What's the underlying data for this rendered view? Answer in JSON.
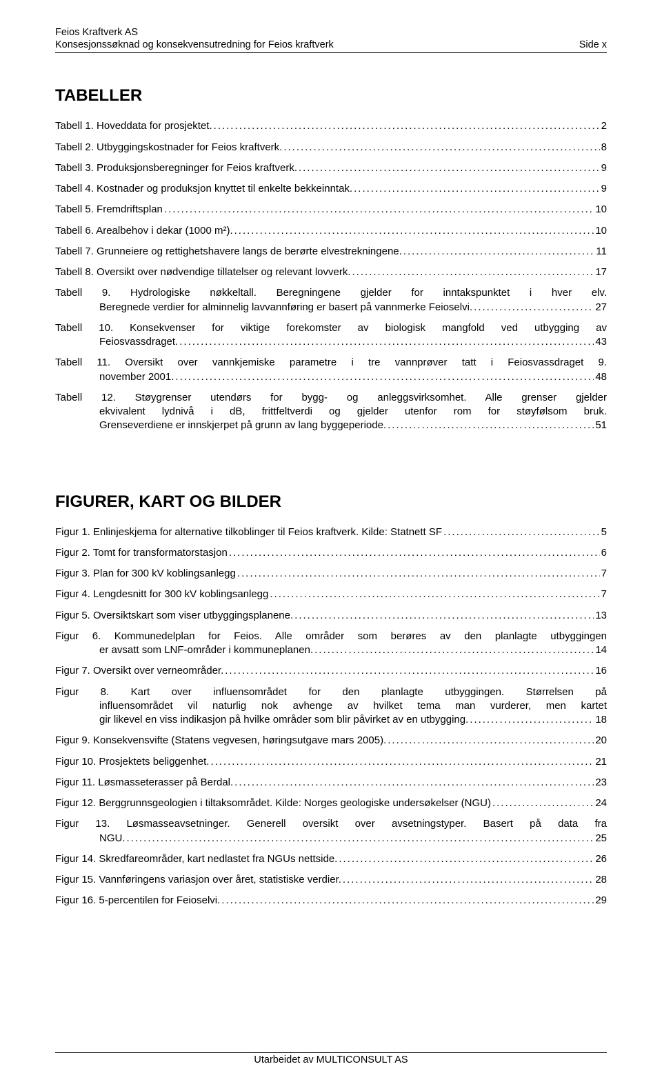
{
  "header": {
    "line1": "Feios Kraftverk AS",
    "line2_left": "Konsesjonssøknad og konsekvensutredning for Feios kraftverk",
    "line2_right": "Side x"
  },
  "sections": [
    {
      "title": "TABELLER",
      "entries": [
        {
          "lead": "Tabell 1.",
          "text": "Hoveddata for prosjektet.",
          "page": "2"
        },
        {
          "lead": "Tabell 2.",
          "text": "Utbyggingskostnader for Feios kraftverk.",
          "page": "8"
        },
        {
          "lead": "Tabell 3.",
          "text": "Produksjonsberegninger for Feios kraftverk.",
          "page": "9"
        },
        {
          "lead": "Tabell 4.",
          "text": "Kostnader og produksjon knyttet til enkelte bekkeinntak.",
          "page": "9"
        },
        {
          "lead": "Tabell 5.",
          "text": "Fremdriftsplan",
          "page": "10"
        },
        {
          "lead": "Tabell 6.",
          "text": "Arealbehov i dekar (1000 m²).",
          "page": "10"
        },
        {
          "lead": "Tabell 7.",
          "text": "Grunneiere og rettighetshavere langs de berørte elvestrekningene.",
          "page": "11"
        },
        {
          "lead": "Tabell 8.",
          "text": "Oversikt over nødvendige tillatelser og relevant lovverk.",
          "page": "17"
        },
        {
          "lead": "Tabell 9.",
          "text_first": "Hydrologiske nøkkeltall. Beregningene gjelder for inntakspunktet i hver elv.",
          "text_last": "Beregnede verdier for alminnelig lavvannføring er basert på vannmerke Feioselvi.",
          "page": "27",
          "multiline": true
        },
        {
          "lead": "Tabell 10.",
          "text_first": "Konsekvenser for viktige forekomster av biologisk mangfold ved utbygging av",
          "text_last": "Feiosvassdraget.",
          "page": "43",
          "multiline": true
        },
        {
          "lead": "Tabell 11.",
          "text_first": "Oversikt over vannkjemiske parametre i tre vannprøver tatt i Feiosvassdraget 9.",
          "text_last": "november 2001.",
          "page": "48",
          "multiline": true
        },
        {
          "lead": "Tabell 12.",
          "text_first": "Støygrenser utendørs for bygg- og anleggsvirksomhet. Alle grenser gjelder",
          "text_mid": "ekvivalent lydnivå i dB, frittfeltverdi og gjelder utenfor rom for støyfølsom bruk.",
          "text_last": "Grenseverdiene er innskjerpet på grunn av lang byggeperiode.",
          "page": "51",
          "multiline": true
        }
      ]
    },
    {
      "title": "FIGURER, KART OG BILDER",
      "entries": [
        {
          "lead": "Figur 1.",
          "text": "Enlinjeskjema for alternative tilkoblinger til Feios kraftverk. Kilde: Statnett SF",
          "page": "5"
        },
        {
          "lead": "Figur 2.",
          "text": "Tomt for transformatorstasjon",
          "page": "6"
        },
        {
          "lead": "Figur 3.",
          "text": "Plan for 300 kV koblingsanlegg",
          "page": "7"
        },
        {
          "lead": "Figur 4.",
          "text": "Lengdesnitt for 300 kV koblingsanlegg",
          "page": "7"
        },
        {
          "lead": "Figur 5.",
          "text": "Oversiktskart som viser utbyggingsplanene.",
          "page": "13"
        },
        {
          "lead": "Figur 6.",
          "text_first": "Kommunedelplan for Feios. Alle områder som berøres av den planlagte utbyggingen",
          "text_last": "er avsatt som LNF-områder i kommuneplanen.",
          "page": "14",
          "multiline": true
        },
        {
          "lead": "Figur 7.",
          "text": "Oversikt over verneområder.",
          "page": "16"
        },
        {
          "lead": "Figur 8.",
          "text_first": "Kart over influensområdet for den planlagte utbyggingen. Størrelsen på",
          "text_mid": "influensområdet vil naturlig nok avhenge av hvilket tema man vurderer, men kartet",
          "text_last": "gir likevel en viss indikasjon på hvilke områder som blir påvirket av en utbygging.",
          "page": "18",
          "multiline": true
        },
        {
          "lead": "Figur 9.",
          "text": "Konsekvensvifte (Statens vegvesen, høringsutgave mars 2005).",
          "page": "20"
        },
        {
          "lead": "Figur 10.",
          "text": "Prosjektets beliggenhet.",
          "page": "21"
        },
        {
          "lead": "Figur 11.",
          "text": "Løsmasseterasser på Berdal.",
          "page": "23"
        },
        {
          "lead": "Figur 12.",
          "text": "Berggrunnsgeologien i tiltaksområdet. Kilde: Norges geologiske undersøkelser (NGU)",
          "page": "24"
        },
        {
          "lead": "Figur 13.",
          "text_first": "Løsmasseavsetninger. Generell oversikt over avsetningstyper. Basert på data fra",
          "text_last": "NGU.",
          "page": "25",
          "multiline": true
        },
        {
          "lead": "Figur 14.",
          "text": "Skredfareområder, kart nedlastet fra NGUs nettside.",
          "page": "26"
        },
        {
          "lead": "Figur 15.",
          "text": "Vannføringens variasjon over året, statistiske verdier.",
          "page": "28"
        },
        {
          "lead": "Figur 16.",
          "text": "5-percentilen for Feioselvi.",
          "page": "29"
        }
      ]
    }
  ],
  "footer": "Utarbeidet av MULTICONSULT AS",
  "leader_dots": "........................................................................................................................................................................................................"
}
